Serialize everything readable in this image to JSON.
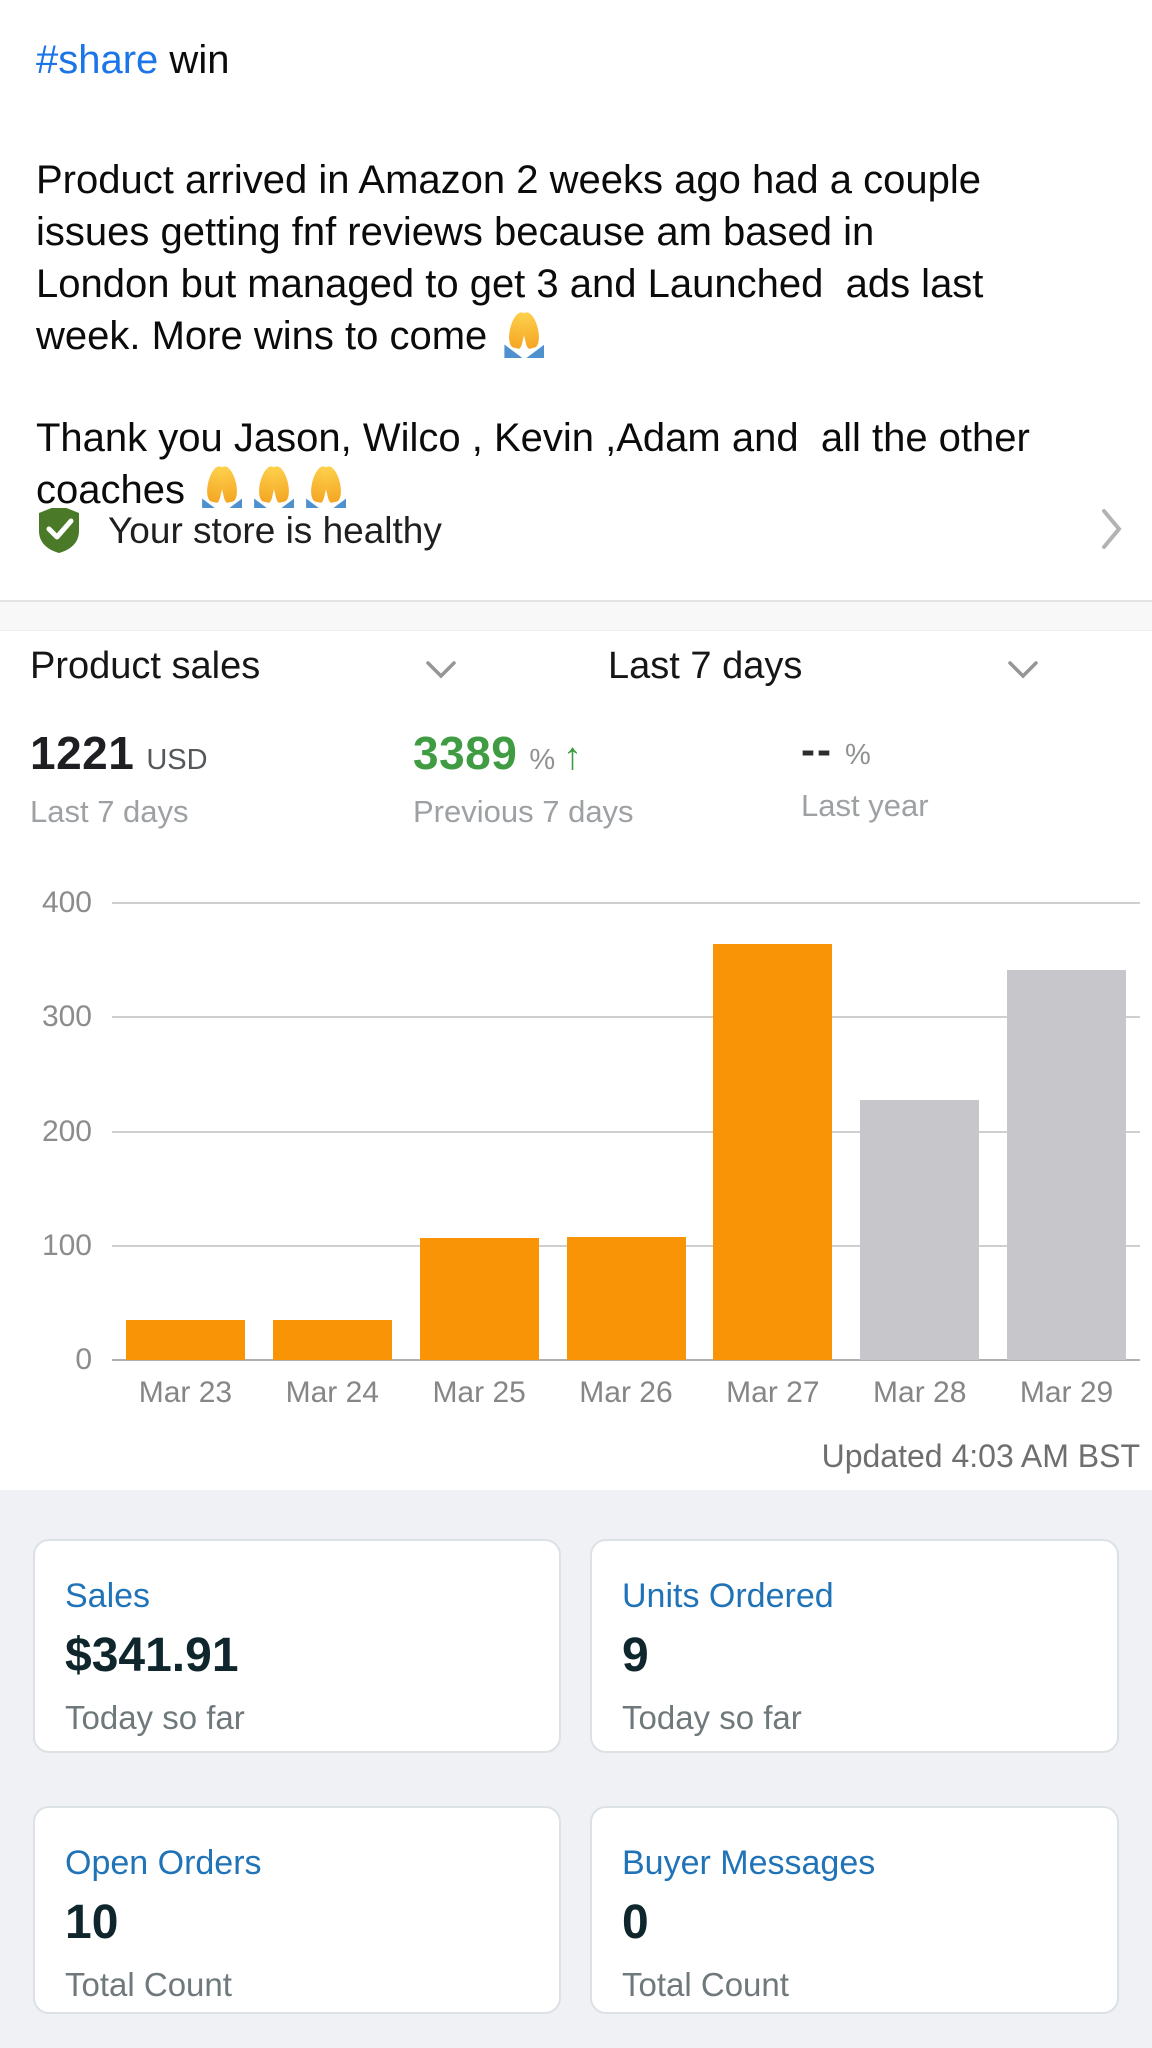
{
  "post": {
    "tag": "#share",
    "title_rest": " win",
    "body_lines": [
      "Product arrived in Amazon 2 weeks ago had a couple",
      "issues getting fnf reviews because am based in",
      "London but managed to get 3 and Launched  ads last",
      "week. More wins to come "
    ],
    "thanks_lines": [
      "Thank you Jason, Wilco , Kevin ,Adam and  all the other",
      "coaches "
    ]
  },
  "store_health": {
    "label": "Your store is healthy"
  },
  "sales_widget": {
    "metric_selector": "Product sales",
    "range_selector": "Last 7 days",
    "metrics": [
      {
        "value": "1221",
        "unit": "USD",
        "caption": "Last 7 days"
      },
      {
        "value": "3389",
        "unit": "%",
        "arrow": "↑",
        "caption": "Previous 7 days"
      },
      {
        "value": "--",
        "unit": "%",
        "caption": "Last year"
      }
    ],
    "updated": "Updated 4:03 AM BST"
  },
  "chart_data": {
    "type": "bar",
    "title": "",
    "xlabel": "",
    "ylabel": "",
    "categories": [
      "Mar 23",
      "Mar 24",
      "Mar 25",
      "Mar 26",
      "Mar 27",
      "Mar 28",
      "Mar 29"
    ],
    "values": [
      35,
      35,
      107,
      108,
      364,
      228,
      341
    ],
    "bar_colors": [
      "#F99406",
      "#F99406",
      "#F99406",
      "#F99406",
      "#F99406",
      "#C7C7CB",
      "#C7C7CB"
    ],
    "ylim": [
      0,
      400
    ],
    "yticks": [
      0,
      100,
      200,
      300,
      400
    ],
    "grid": true,
    "legend": "none"
  },
  "summary_cards": [
    {
      "title": "Sales",
      "value": "$341.91",
      "caption": "Today so far"
    },
    {
      "title": "Units Ordered",
      "value": "9",
      "caption": "Today so far"
    },
    {
      "title": "Open Orders",
      "value": "10",
      "caption": "Total Count"
    },
    {
      "title": "Buyer Messages",
      "value": "0",
      "caption": "Total Count"
    }
  ],
  "colors": {
    "link_blue": "#1b74e8",
    "bar_orange": "#F99406",
    "bar_gray": "#C7C7CB",
    "metric_green": "#3f9c42",
    "shield_green": "#4a7a28",
    "card_title_blue": "#2173b8",
    "card_value_ink": "#0e262c",
    "panel_bg": "#eff1f4"
  }
}
